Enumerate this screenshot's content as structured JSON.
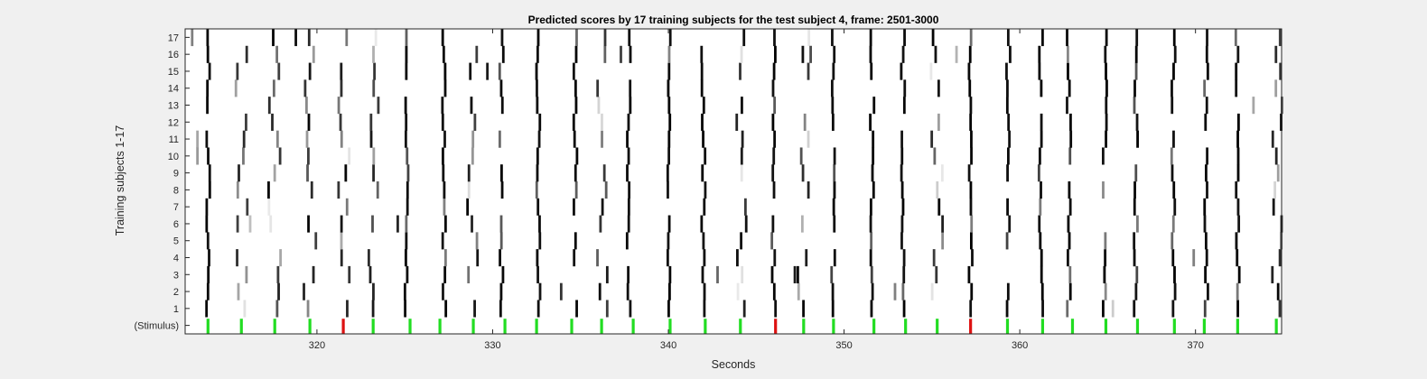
{
  "chart_data": {
    "type": "heatmap",
    "title": "Predicted scores by 17 training subjects for the test subject 4, frame: 2501-3000",
    "xlabel": "Seconds",
    "ylabel": "Training subjects 1-17",
    "xlim": [
      312.5,
      374.9
    ],
    "x_ticks": [
      320,
      330,
      340,
      350,
      360,
      370
    ],
    "y_tick_labels": [
      "(Stimulus)",
      "1",
      "2",
      "3",
      "4",
      "5",
      "6",
      "7",
      "8",
      "9",
      "10",
      "11",
      "12",
      "13",
      "14",
      "15",
      "16",
      "17"
    ],
    "colormap": "grayscale: white = 0, black = 1",
    "stimulus_colors": {
      "correct": "#22dd22",
      "error": "#dd1111"
    },
    "stimulus": {
      "times": [
        313.8,
        315.7,
        317.6,
        319.6,
        321.5,
        323.2,
        325.3,
        327.0,
        328.9,
        330.7,
        332.5,
        334.5,
        336.2,
        338.0,
        340.1,
        342.1,
        344.1,
        346.1,
        347.7,
        349.4,
        351.7,
        353.5,
        355.3,
        357.2,
        359.3,
        361.3,
        363.0,
        364.9,
        366.7,
        368.8,
        370.5,
        372.4,
        374.6
      ],
      "status": [
        "c",
        "c",
        "c",
        "c",
        "e",
        "c",
        "c",
        "c",
        "c",
        "c",
        "c",
        "c",
        "c",
        "c",
        "c",
        "c",
        "c",
        "e",
        "c",
        "c",
        "c",
        "c",
        "c",
        "e",
        "c",
        "c",
        "c",
        "c",
        "c",
        "c",
        "c",
        "c",
        "c"
      ]
    },
    "strong_times": [
      313.7,
      325.1,
      327.1,
      330.6,
      332.6,
      334.6,
      337.9,
      340.0,
      342.0,
      346.1,
      349.3,
      351.6,
      353.4,
      357.1,
      359.3,
      361.2,
      362.9,
      364.8,
      366.6,
      368.8,
      370.5,
      372.4
    ],
    "strong_jitter": [
      0.1,
      0,
      0.15,
      -0.1,
      0,
      0.1,
      -0.15,
      0.05,
      0,
      -0.1,
      0.1,
      0,
      -0.05,
      0.1,
      0.05,
      0,
      -0.1,
      0.05,
      0,
      -0.05,
      0.1,
      0
    ],
    "weak_times": [
      315.7,
      317.6,
      319.6,
      321.5,
      323.2,
      328.9,
      336.2,
      344.1,
      347.7,
      355.3,
      374.6
    ],
    "isolated_marks": [
      {
        "time": 312.9,
        "subject": 17,
        "score": 0.5
      },
      {
        "time": 313.2,
        "subject": 11,
        "score": 0.35
      },
      {
        "time": 313.2,
        "subject": 10,
        "score": 0.4
      },
      {
        "time": 316.2,
        "subject": 6,
        "score": 0.25
      },
      {
        "time": 318.8,
        "subject": 17,
        "score": 0.95
      },
      {
        "time": 324.6,
        "subject": 6,
        "score": 0.85
      },
      {
        "time": 329.7,
        "subject": 15,
        "score": 0.9
      },
      {
        "time": 333.9,
        "subject": 2,
        "score": 0.8
      },
      {
        "time": 337.3,
        "subject": 16,
        "score": 0.75
      },
      {
        "time": 342.8,
        "subject": 3,
        "score": 0.6
      },
      {
        "time": 347.2,
        "subject": 3,
        "score": 0.9
      },
      {
        "time": 348.1,
        "subject": 16,
        "score": 0.7
      },
      {
        "time": 352.9,
        "subject": 2,
        "score": 0.5
      },
      {
        "time": 356.4,
        "subject": 16,
        "score": 0.3
      },
      {
        "time": 365.3,
        "subject": 1,
        "score": 0.2
      },
      {
        "time": 369.9,
        "subject": 4,
        "score": 0.5
      },
      {
        "time": 373.3,
        "subject": 13,
        "score": 0.35
      },
      {
        "time": 374.4,
        "subject": 11,
        "score": 0.85
      }
    ]
  }
}
